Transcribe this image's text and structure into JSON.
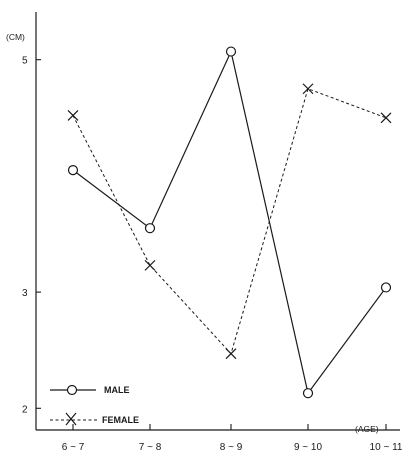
{
  "chart_data": {
    "type": "line",
    "title": "",
    "ylabel": "(CM)",
    "xlabel": "(AGE)",
    "categories": [
      "6 ~ 7",
      "7 ~ 8",
      "8 ~ 9",
      "9 ~ 10",
      "10 ~ 11"
    ],
    "ylim": [
      1.7,
      5.4
    ],
    "yticks": [
      2,
      3,
      5
    ],
    "grid": false,
    "legend_position": "bottom-left",
    "series": [
      {
        "name": "MALE",
        "marker": "circle",
        "line": "solid",
        "values": [
          4.05,
          3.55,
          5.07,
          2.13,
          3.04
        ]
      },
      {
        "name": "FEMALE",
        "marker": "cross",
        "line": "dashed",
        "values": [
          4.52,
          3.23,
          2.47,
          4.75,
          4.5
        ]
      }
    ],
    "colors": {
      "ink": "#1a1a1a",
      "background": "#ffffff"
    }
  }
}
